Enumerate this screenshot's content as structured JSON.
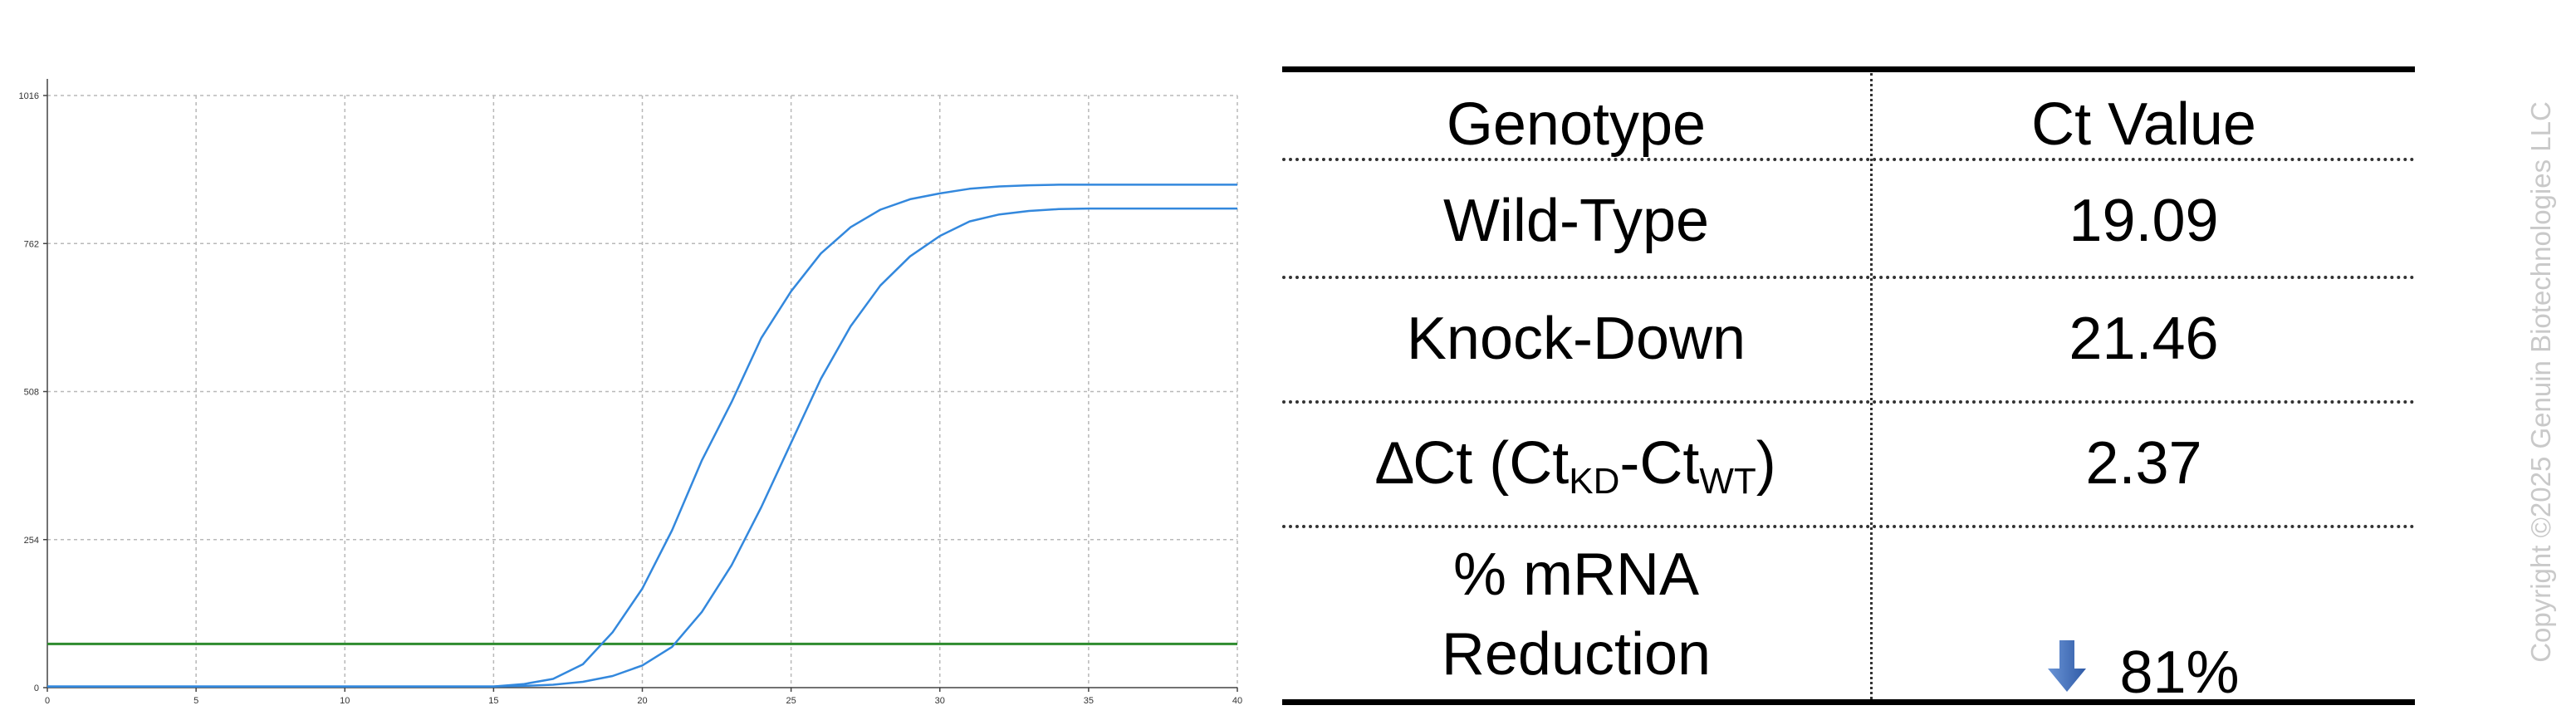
{
  "chart_data": {
    "type": "line",
    "x_ticks": [
      "0",
      "5",
      "10",
      "15",
      "20",
      "25",
      "30",
      "35",
      "40"
    ],
    "y_ticks": [
      "0",
      "254",
      "508",
      "762",
      "1016"
    ],
    "xlim": [
      0,
      40
    ],
    "ylim": [
      0,
      1016
    ],
    "grid": true,
    "threshold": 75,
    "series": [
      {
        "x": [
          0,
          1,
          2,
          3,
          4,
          5,
          6,
          7,
          8,
          9,
          10,
          11,
          12,
          13,
          14,
          15,
          16,
          17,
          18,
          19,
          20,
          21,
          22,
          23,
          24,
          25,
          26,
          27,
          28,
          29,
          30,
          31,
          32,
          33,
          34,
          35,
          36,
          37,
          38,
          39,
          40
        ],
        "y": [
          2,
          2,
          2,
          2,
          2,
          2,
          2,
          2,
          2,
          2,
          2,
          2,
          2,
          2,
          2,
          2,
          6,
          15,
          40,
          95,
          170,
          270,
          390,
          490,
          600,
          680,
          745,
          790,
          820,
          838,
          848,
          856,
          860,
          862,
          863,
          863,
          863,
          863,
          863,
          863,
          863
        ]
      },
      {
        "x": [
          0,
          1,
          2,
          3,
          4,
          5,
          6,
          7,
          8,
          9,
          10,
          11,
          12,
          13,
          14,
          15,
          16,
          17,
          18,
          19,
          20,
          21,
          22,
          23,
          24,
          25,
          26,
          27,
          28,
          29,
          30,
          31,
          32,
          33,
          34,
          35,
          36,
          37,
          38,
          39,
          40
        ],
        "y": [
          2,
          2,
          2,
          2,
          2,
          2,
          2,
          2,
          2,
          2,
          2,
          2,
          2,
          2,
          2,
          2,
          3,
          5,
          10,
          20,
          38,
          70,
          130,
          210,
          310,
          420,
          530,
          620,
          690,
          740,
          775,
          800,
          812,
          818,
          821,
          822,
          822,
          822,
          822,
          822,
          822
        ]
      }
    ],
    "colors": {
      "curve": "#3388dd",
      "threshold": "#2e8b2e",
      "grid": "#b8b8b8",
      "axis": "#444444"
    }
  },
  "table": {
    "header": {
      "genotype": "Genotype",
      "ct_value": "Ct Value"
    },
    "wild_type": {
      "label": "Wild-Type",
      "value": "19.09"
    },
    "knock_down": {
      "label": "Knock-Down",
      "value": "21.46"
    },
    "delta_ct": {
      "symbol": "∆",
      "label_main": "Ct (Ct",
      "sub_kd": "KD",
      "label_mid": "-Ct",
      "sub_wt": "WT",
      "label_end": ")",
      "value": "2.37"
    },
    "reduction": {
      "label_line1": "% mRNA",
      "label_line2": "Reduction",
      "value": "81%",
      "icon": "down-arrow-icon",
      "icon_color": "#3a6ec0"
    }
  },
  "copyright": "Copyright ©2025 Genuin Biotechnologies LLC"
}
